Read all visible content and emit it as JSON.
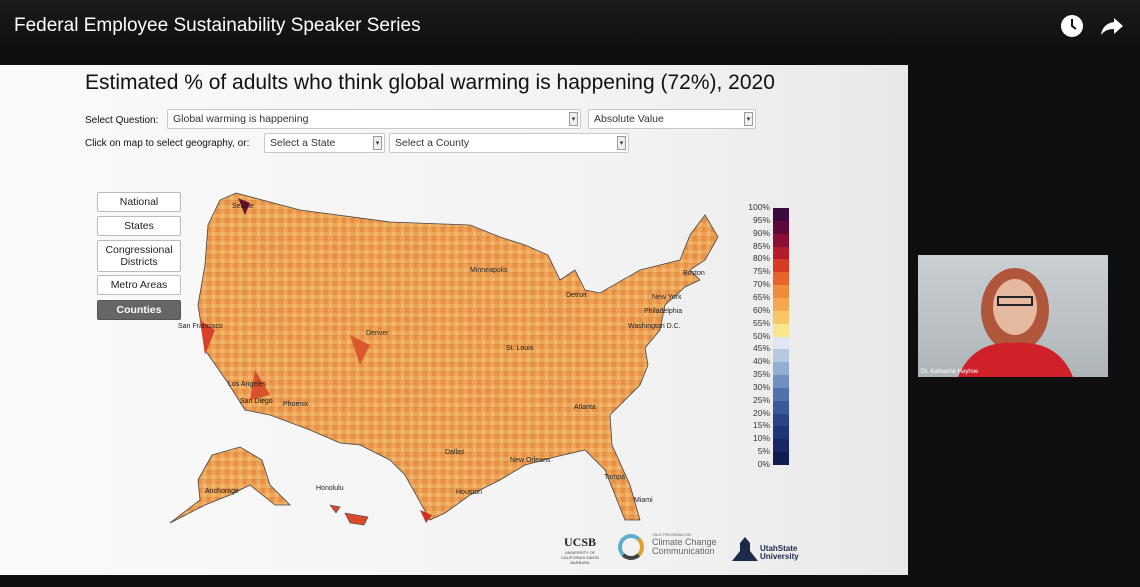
{
  "video": {
    "title": "Federal Employee Sustainability Speaker Series",
    "icons": [
      "clock-icon",
      "share-icon"
    ]
  },
  "slide": {
    "title": "Estimated % of adults who think global warming is happening (72%), 2020",
    "question_label": "Select Question:",
    "question_value": "Global warming is happening",
    "measure_value": "Absolute Value",
    "geo_label": "Click on map to select geography, or:",
    "state_placeholder": "Select a State",
    "county_placeholder": "Select a County",
    "geo_buttons": [
      {
        "label": "National"
      },
      {
        "label": "States"
      },
      {
        "label": "Congressional Districts"
      },
      {
        "label": "Metro Areas"
      },
      {
        "label": "Counties",
        "active": true
      }
    ],
    "legend": [
      "100%",
      "95%",
      "90%",
      "85%",
      "80%",
      "75%",
      "70%",
      "65%",
      "60%",
      "55%",
      "50%",
      "45%",
      "40%",
      "35%",
      "30%",
      "25%",
      "20%",
      "15%",
      "10%",
      "5%",
      "0%"
    ],
    "legend_colors": [
      "#3b0a3f",
      "#5e0a3a",
      "#8a0f35",
      "#b31a2a",
      "#d93a24",
      "#e8632c",
      "#f08b3a",
      "#f4a850",
      "#f7c766",
      "#fbe48e",
      "#dfe8f2",
      "#b7c9e0",
      "#93aed3",
      "#7090c2",
      "#5072ad",
      "#3a5999",
      "#2b4487",
      "#203576",
      "#182864",
      "#101d52"
    ],
    "cities": [
      "Seattle",
      "San Francisco",
      "Los Angeles",
      "San Diego",
      "Phoenix",
      "Denver",
      "Minneapolis",
      "Detroit",
      "St. Louis",
      "Dallas",
      "Houston",
      "New Orleans",
      "Atlanta",
      "Tampa",
      "Miami",
      "Boston",
      "New York",
      "Philadelphia",
      "Washington D.C.",
      "Anchorage",
      "Honolulu"
    ],
    "logos": {
      "ucsb": "UCSB",
      "ucsb_sub": "UNIVERSITY OF CALIFORNIA SANTA BARBARA",
      "yale_top": "YALE PROGRAM ON",
      "yale": "Climate Change Communication",
      "usu": "UtahState University"
    }
  },
  "webcam": {
    "name": "Dr. Katharine Hayhoe"
  }
}
